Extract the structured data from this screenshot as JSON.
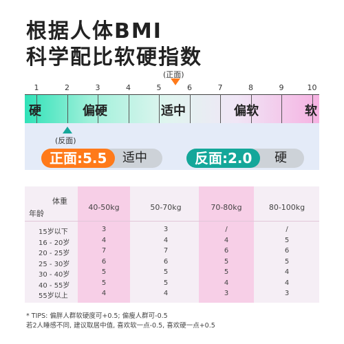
{
  "title": {
    "line1": "根据人体BMI",
    "line2": "科学配比软硬指数"
  },
  "scale": {
    "numbers": [
      "1",
      "2",
      "3",
      "4",
      "5",
      "6",
      "7",
      "8",
      "9",
      "10"
    ],
    "front_marker": "(正面)",
    "back_marker": "(反面)",
    "segments": [
      "硬",
      "偏硬",
      "适中",
      "偏软",
      "软"
    ]
  },
  "results": {
    "front": {
      "label": "正面:5.5",
      "value_label": "适中",
      "color": "#ff7a1a"
    },
    "back": {
      "label": "反面:2.0",
      "value_label": "硬",
      "color": "#14a79a"
    }
  },
  "table": {
    "corner_top": "体重",
    "corner_bottom": "年龄",
    "columns": [
      "40-50kg",
      "50-70kg",
      "70-80kg",
      "80-100kg"
    ],
    "rows": [
      {
        "age": "15岁以下",
        "values": [
          "3",
          "3",
          "/",
          "/"
        ]
      },
      {
        "age": "16 - 20岁",
        "values": [
          "4",
          "4",
          "4",
          "5"
        ]
      },
      {
        "age": "20 - 25岁",
        "values": [
          "7",
          "7",
          "6",
          "6"
        ]
      },
      {
        "age": "25 - 30岁",
        "values": [
          "6",
          "6",
          "5",
          "5"
        ]
      },
      {
        "age": "30 - 40岁",
        "values": [
          "5",
          "5",
          "5",
          "4"
        ]
      },
      {
        "age": "40 - 55岁",
        "values": [
          "5",
          "5",
          "4",
          "4"
        ]
      },
      {
        "age": "55岁以上",
        "values": [
          "4",
          "4",
          "3",
          "3"
        ]
      }
    ]
  },
  "notes": {
    "line1": "* TIPS: 偏胖人群软硬度可+0.5; 偏瘦人群可-0.5",
    "line2": "若2人睡感不同, 建议取居中值, 喜欢软一点-0.5, 喜欢硬一点+0.5"
  }
}
